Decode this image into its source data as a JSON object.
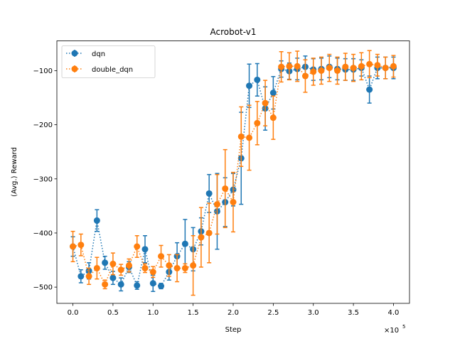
{
  "chart_data": {
    "type": "line",
    "title": "Acrobot-v1",
    "xlabel": "Step",
    "ylabel": "(Avg.) Reward",
    "x_multiplier_label": "×10",
    "x_multiplier_exp": "5",
    "xlim": [
      -0.2,
      4.2
    ],
    "ylim": [
      -530,
      -45
    ],
    "xticks": [
      0.0,
      0.5,
      1.0,
      1.5,
      2.0,
      2.5,
      3.0,
      3.5,
      4.0
    ],
    "xtick_labels": [
      "0.0",
      "0.5",
      "1.0",
      "1.5",
      "2.0",
      "2.5",
      "3.0",
      "3.5",
      "4.0"
    ],
    "yticks": [
      -500,
      -400,
      -300,
      -200,
      -100
    ],
    "ytick_labels": [
      "−500",
      "−400",
      "−300",
      "−200",
      "−100"
    ],
    "grid": false,
    "legend_position": "top-left",
    "x": [
      0.0,
      0.1,
      0.2,
      0.3,
      0.4,
      0.5,
      0.6,
      0.7,
      0.8,
      0.9,
      1.0,
      1.1,
      1.2,
      1.3,
      1.4,
      1.5,
      1.6,
      1.7,
      1.8,
      1.9,
      2.0,
      2.1,
      2.2,
      2.3,
      2.4,
      2.5,
      2.6,
      2.7,
      2.8,
      2.9,
      3.0,
      3.1,
      3.2,
      3.3,
      3.4,
      3.5,
      3.6,
      3.7,
      3.8,
      3.9,
      4.0
    ],
    "series": [
      {
        "name": "dqn",
        "color": "#1f77b4",
        "values": [
          -425,
          -480,
          -470,
          -377,
          -455,
          -483,
          -495,
          -463,
          -497,
          -430,
          -493,
          -498,
          -472,
          -443,
          -420,
          -430,
          -397,
          -327,
          -360,
          -343,
          -320,
          -262,
          -128,
          -117,
          -170,
          -141,
          -97,
          -101,
          -97,
          -93,
          -98,
          -97,
          -93,
          -97,
          -98,
          -98,
          -95,
          -135,
          -95,
          -95,
          -95
        ],
        "errors": [
          18,
          12,
          15,
          20,
          12,
          12,
          12,
          10,
          7,
          25,
          15,
          5,
          15,
          25,
          45,
          40,
          25,
          35,
          70,
          45,
          30,
          85,
          40,
          30,
          40,
          30,
          15,
          15,
          20,
          20,
          20,
          20,
          20,
          20,
          20,
          20,
          15,
          25,
          20,
          20,
          20
        ]
      },
      {
        "name": "double_dqn",
        "color": "#ff7f0e",
        "values": [
          -425,
          -422,
          -480,
          -465,
          -495,
          -457,
          -468,
          -460,
          -425,
          -465,
          -472,
          -443,
          -460,
          -465,
          -465,
          -460,
          -408,
          -400,
          -347,
          -318,
          -343,
          -222,
          -224,
          -197,
          -160,
          -187,
          -93,
          -92,
          -92,
          -110,
          -102,
          -100,
          -95,
          -100,
          -93,
          -95,
          -92,
          -88,
          -90,
          -95,
          -92
        ],
        "errors": [
          28,
          20,
          15,
          20,
          8,
          20,
          10,
          12,
          20,
          8,
          10,
          20,
          20,
          25,
          8,
          55,
          55,
          55,
          55,
          72,
          55,
          55,
          60,
          40,
          42,
          40,
          28,
          25,
          28,
          30,
          25,
          25,
          25,
          25,
          25,
          25,
          25,
          25,
          20,
          20,
          20
        ]
      }
    ]
  }
}
